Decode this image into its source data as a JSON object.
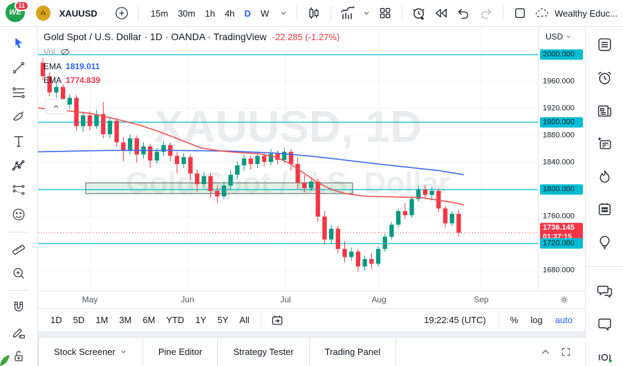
{
  "topbar": {
    "badge": "11",
    "symbol": "XAUUSD",
    "intervals": [
      {
        "label": "15m",
        "active": false
      },
      {
        "label": "30m",
        "active": false
      },
      {
        "label": "1h",
        "active": false
      },
      {
        "label": "4h",
        "active": false
      },
      {
        "label": "D",
        "active": true
      },
      {
        "label": "W",
        "active": false
      }
    ],
    "layout_name": "Wealthy Educ...",
    "icons": [
      "compare-add",
      "candles-style",
      "indicators",
      "layout-grid",
      "alert-add",
      "bar-replay",
      "undo",
      "redo",
      "layout-square",
      "cloud-save"
    ]
  },
  "legend": {
    "title": "Gold Spot / U.S. Dollar · 1D · OANDA · TradingView",
    "change": "-22.285 (-1.27%)",
    "vol_label": "Vol",
    "emas": [
      {
        "label": "EMA",
        "value": "1819.011",
        "color": "#2962ff"
      },
      {
        "label": "EMA",
        "value": "1774.839",
        "color": "#f23645"
      }
    ]
  },
  "watermark": {
    "line1": "XAUUSD, 1D",
    "line2": "Gold Spot / U.S. Dollar"
  },
  "left_toolbar": {
    "tools": [
      "cursor",
      "trend-line",
      "fib-retracement",
      "brush",
      "text",
      "xabcd-pattern",
      "forecast",
      "emoji",
      "ruler",
      "zoom-in",
      "magnet",
      "drawing-mode-lock",
      "lock-all-drawings"
    ]
  },
  "right_sidebar": {
    "icons": [
      "watchlist",
      "alerts",
      "news",
      "data-window",
      "hotlists",
      "calendar",
      "ideas",
      "public-chats",
      "private-chat",
      "streams"
    ]
  },
  "chart_data": {
    "type": "candlestick",
    "title": "Gold Spot / U.S. Dollar",
    "symbol": "XAUUSD",
    "timeframe": "1D",
    "exchange": "OANDA",
    "change": -22.285,
    "change_pct": -1.27,
    "ylim": [
      1660,
      2035
    ],
    "grid_prices": [
      1680,
      1720,
      1760,
      1800,
      1840,
      1880,
      1920,
      1960,
      2000
    ],
    "levels": [
      2000,
      1900,
      1800,
      1720
    ],
    "current_price": {
      "value": "1736.145",
      "countdown": "01:37:15",
      "price": 1736.145
    },
    "zone": {
      "x1": 69,
      "x2": 455,
      "top": 1810,
      "bottom": 1794
    },
    "colors": {
      "up": "#089981",
      "down": "#f23645",
      "level": "#00bcd4",
      "ema_blue": "#3d6bf0",
      "ema_red": "#ef5350",
      "grid": "#f0f3fa"
    },
    "price_axis": {
      "currency": "USD",
      "labels": [
        {
          "text": "2000.000",
          "price": 2000,
          "type": "level"
        },
        {
          "text": "1960.000",
          "price": 1960,
          "type": "plain"
        },
        {
          "text": "1920.000",
          "price": 1920,
          "type": "plain"
        },
        {
          "text": "1900.000",
          "price": 1900,
          "type": "level"
        },
        {
          "text": "1880.000",
          "price": 1880,
          "type": "plain"
        },
        {
          "text": "1840.000",
          "price": 1840,
          "type": "plain"
        },
        {
          "text": "1800.000",
          "price": 1800,
          "type": "level"
        },
        {
          "text": "1760.000",
          "price": 1760,
          "type": "plain"
        },
        {
          "text": "1736.145",
          "sub": "01:37:15",
          "price": 1736.145,
          "type": "current"
        },
        {
          "text": "1720.000",
          "price": 1720,
          "type": "level"
        },
        {
          "text": "1680.000",
          "price": 1680,
          "type": "plain"
        }
      ]
    },
    "x_axis": {
      "months": [
        {
          "label": "May",
          "x": 75
        },
        {
          "label": "Jun",
          "x": 216
        },
        {
          "label": "Jul",
          "x": 358
        },
        {
          "label": "Aug",
          "x": 493
        },
        {
          "label": "Sep",
          "x": 641
        }
      ]
    },
    "ema_blue": {
      "value": 1819.011,
      "points": [
        [
          0,
          1856
        ],
        [
          100,
          1858
        ],
        [
          200,
          1858
        ],
        [
          280,
          1857
        ],
        [
          345,
          1854
        ],
        [
          400,
          1849
        ],
        [
          450,
          1843
        ],
        [
          500,
          1837
        ],
        [
          545,
          1832
        ],
        [
          580,
          1828
        ],
        [
          616,
          1822
        ]
      ]
    },
    "ema_red": {
      "value": 1774.839,
      "points": [
        [
          0,
          1921
        ],
        [
          40,
          1917
        ],
        [
          75,
          1913
        ],
        [
          115,
          1904
        ],
        [
          145,
          1896
        ],
        [
          175,
          1886
        ],
        [
          205,
          1874
        ],
        [
          235,
          1862
        ],
        [
          265,
          1857
        ],
        [
          290,
          1855
        ],
        [
          320,
          1853
        ],
        [
          345,
          1848
        ],
        [
          365,
          1838
        ],
        [
          385,
          1824
        ],
        [
          405,
          1810
        ],
        [
          425,
          1800
        ],
        [
          445,
          1794
        ],
        [
          475,
          1790
        ],
        [
          520,
          1789
        ],
        [
          555,
          1788
        ],
        [
          580,
          1784
        ],
        [
          600,
          1781
        ],
        [
          616,
          1777
        ]
      ]
    },
    "candles": [
      [
        1988,
        1995,
        1962,
        1968
      ],
      [
        1968,
        1974,
        1938,
        1944
      ],
      [
        1944,
        1958,
        1936,
        1952
      ],
      [
        1952,
        1956,
        1920,
        1926
      ],
      [
        1926,
        1942,
        1920,
        1936
      ],
      [
        1936,
        1940,
        1888,
        1894
      ],
      [
        1894,
        1916,
        1886,
        1910
      ],
      [
        1910,
        1916,
        1888,
        1894
      ],
      [
        1894,
        1918,
        1890,
        1912
      ],
      [
        1912,
        1930,
        1876,
        1882
      ],
      [
        1882,
        1908,
        1876,
        1902
      ],
      [
        1902,
        1906,
        1864,
        1870
      ],
      [
        1870,
        1878,
        1842,
        1858
      ],
      [
        1858,
        1882,
        1852,
        1876
      ],
      [
        1876,
        1880,
        1840,
        1852
      ],
      [
        1852,
        1870,
        1846,
        1864
      ],
      [
        1864,
        1868,
        1832,
        1843
      ],
      [
        1843,
        1862,
        1838,
        1856
      ],
      [
        1856,
        1872,
        1850,
        1866
      ],
      [
        1866,
        1870,
        1842,
        1850
      ],
      [
        1850,
        1856,
        1824,
        1838
      ],
      [
        1838,
        1854,
        1832,
        1848
      ],
      [
        1848,
        1852,
        1814,
        1824
      ],
      [
        1824,
        1830,
        1796,
        1808
      ],
      [
        1808,
        1826,
        1802,
        1820
      ],
      [
        1820,
        1824,
        1788,
        1798
      ],
      [
        1798,
        1806,
        1780,
        1790
      ],
      [
        1790,
        1812,
        1786,
        1806
      ],
      [
        1806,
        1828,
        1800,
        1822
      ],
      [
        1822,
        1842,
        1816,
        1836
      ],
      [
        1836,
        1852,
        1828,
        1846
      ],
      [
        1846,
        1850,
        1830,
        1838
      ],
      [
        1838,
        1856,
        1832,
        1850
      ],
      [
        1850,
        1854,
        1834,
        1841
      ],
      [
        1841,
        1860,
        1836,
        1853
      ],
      [
        1853,
        1858,
        1838,
        1844
      ],
      [
        1844,
        1862,
        1839,
        1856
      ],
      [
        1856,
        1860,
        1828,
        1838
      ],
      [
        1838,
        1848,
        1800,
        1810
      ],
      [
        1810,
        1822,
        1796,
        1802
      ],
      [
        1802,
        1818,
        1798,
        1812
      ],
      [
        1812,
        1816,
        1752,
        1760
      ],
      [
        1760,
        1768,
        1718,
        1726
      ],
      [
        1726,
        1748,
        1720,
        1742
      ],
      [
        1742,
        1746,
        1706,
        1712
      ],
      [
        1712,
        1724,
        1692,
        1700
      ],
      [
        1700,
        1714,
        1694,
        1708
      ],
      [
        1708,
        1712,
        1678,
        1686
      ],
      [
        1686,
        1702,
        1680,
        1697
      ],
      [
        1697,
        1706,
        1682,
        1690
      ],
      [
        1690,
        1716,
        1686,
        1712
      ],
      [
        1712,
        1735,
        1708,
        1730
      ],
      [
        1730,
        1752,
        1726,
        1748
      ],
      [
        1748,
        1772,
        1744,
        1768
      ],
      [
        1768,
        1780,
        1756,
        1762
      ],
      [
        1762,
        1790,
        1758,
        1786
      ],
      [
        1786,
        1806,
        1782,
        1800
      ],
      [
        1800,
        1807,
        1786,
        1792
      ],
      [
        1792,
        1804,
        1784,
        1798
      ],
      [
        1798,
        1802,
        1766,
        1772
      ],
      [
        1772,
        1776,
        1744,
        1750
      ],
      [
        1750,
        1768,
        1746,
        1764
      ],
      [
        1764,
        1770,
        1730,
        1736
      ]
    ]
  },
  "range_bar": {
    "ranges": [
      "1D",
      "5D",
      "1M",
      "3M",
      "6M",
      "YTD",
      "1Y",
      "5Y",
      "All"
    ],
    "clock": "19:22:45 (UTC)",
    "percent_label": "%",
    "log_label": "log",
    "auto_label": "auto"
  },
  "tabs": [
    {
      "label": "Stock Screener",
      "chevron": true
    },
    {
      "label": "Pine Editor",
      "chevron": false
    },
    {
      "label": "Strategy Tester",
      "chevron": false
    },
    {
      "label": "Trading Panel",
      "chevron": false
    }
  ]
}
